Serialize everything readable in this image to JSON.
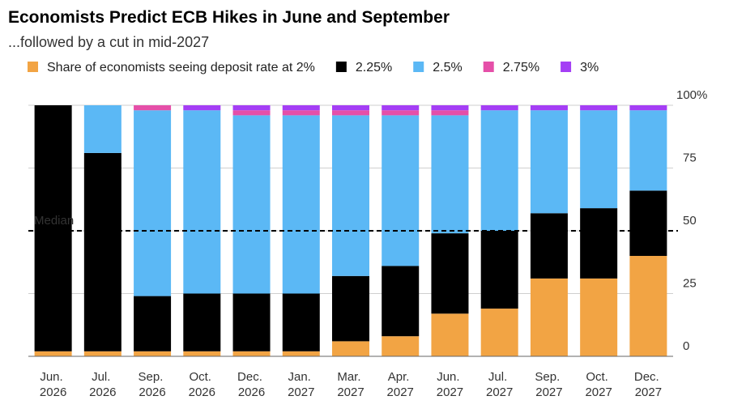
{
  "chart_data": {
    "type": "stacked_bar",
    "title": "Economists Predict ECB Hikes in June and September",
    "subtitle": "...followed by a cut in mid-2027",
    "categories": [
      "Jun. 2026",
      "Jul. 2026",
      "Sep. 2026",
      "Oct. 2026",
      "Dec. 2026",
      "Jan. 2027",
      "Mar. 2027",
      "Apr. 2027",
      "Jun. 2027",
      "Jul. 2027",
      "Sep. 2027",
      "Oct. 2027",
      "Dec. 2027"
    ],
    "series": [
      {
        "name": "Share of economists seeing deposit rate at 2%",
        "color": "#f2a444",
        "values": [
          2,
          2,
          2,
          2,
          2,
          2,
          6,
          8,
          17,
          19,
          31,
          31,
          40
        ]
      },
      {
        "name": "2.25%",
        "color": "#000000",
        "values": [
          98,
          79,
          22,
          23,
          23,
          23,
          26,
          28,
          32,
          31,
          26,
          28,
          26
        ]
      },
      {
        "name": "2.5%",
        "color": "#5bb8f5",
        "values": [
          0,
          19,
          74,
          73,
          71,
          71,
          64,
          60,
          47,
          48,
          41,
          39,
          32
        ]
      },
      {
        "name": "2.75%",
        "color": "#e54fa8",
        "values": [
          0,
          0,
          2,
          0,
          2,
          2,
          2,
          2,
          2,
          0,
          0,
          0,
          0
        ]
      },
      {
        "name": "3%",
        "color": "#a43ef5",
        "values": [
          0,
          0,
          0,
          2,
          2,
          2,
          2,
          2,
          2,
          2,
          2,
          2,
          2
        ]
      }
    ],
    "ylim": [
      0,
      100
    ],
    "yticks": [
      0,
      25,
      50,
      75,
      {
        "value": 100,
        "label": "100%"
      }
    ],
    "grid": true,
    "median": {
      "label": "Median",
      "value": 50
    }
  }
}
